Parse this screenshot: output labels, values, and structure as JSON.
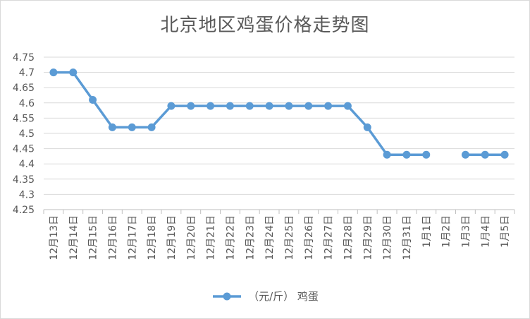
{
  "chart_data": {
    "type": "line",
    "title": "北京地区鸡蛋价格走势图",
    "xlabel": "",
    "ylabel": "",
    "categories": [
      "12月13日",
      "12月14日",
      "12月15日",
      "12月16日",
      "12月17日",
      "12月18日",
      "12月19日",
      "12月20日",
      "12月21日",
      "12月22日",
      "12月23日",
      "12月24日",
      "12月25日",
      "12月26日",
      "12月27日",
      "12月28日",
      "12月29日",
      "12月30日",
      "12月31日",
      "1月1日",
      "1月2日",
      "1月3日",
      "1月4日",
      "1月5日"
    ],
    "series": [
      {
        "name": "（元/斤） 鸡蛋",
        "color": "#5b9bd5",
        "values": [
          4.7,
          4.7,
          4.61,
          4.52,
          4.52,
          4.52,
          4.59,
          4.59,
          4.59,
          4.59,
          4.59,
          4.59,
          4.59,
          4.59,
          4.59,
          4.59,
          4.52,
          4.43,
          4.43,
          4.43,
          null,
          4.43,
          4.43,
          4.43
        ]
      }
    ],
    "ylim": [
      4.25,
      4.75
    ],
    "yticks": [
      4.25,
      4.3,
      4.35,
      4.4,
      4.45,
      4.5,
      4.55,
      4.6,
      4.65,
      4.7,
      4.75
    ],
    "ytick_labels": [
      "4.25",
      "4.3",
      "4.35",
      "4.4",
      "4.45",
      "4.5",
      "4.55",
      "4.6",
      "4.65",
      "4.7",
      "4.75"
    ],
    "grid": true,
    "legend_position": "bottom",
    "gridline_color": "#d9d9d9",
    "axis_color": "#bfbfbf",
    "text_color": "#595959"
  }
}
